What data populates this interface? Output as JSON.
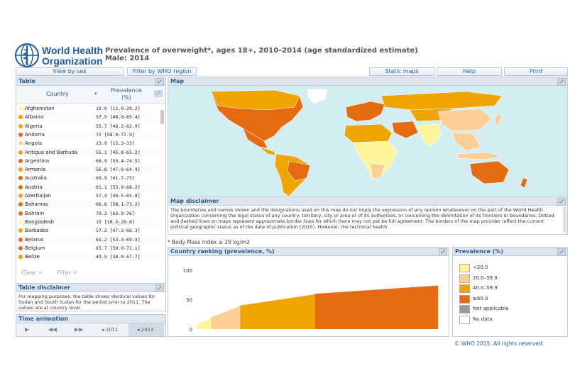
{
  "header": {
    "logo_line1": "World Health",
    "logo_line2": "Organization",
    "title_line1": "Prevalence of overweight*, ages 18+, 2010–2014 (age standardized estimate)",
    "title_line2": "Male: 2014"
  },
  "toolbar": {
    "view_by_sex": "View by sex",
    "filter_by_region": "Filter by WHO region",
    "static_maps": "Static maps",
    "help": "Help",
    "print": "Print"
  },
  "table": {
    "heading": "Table",
    "col_country": "Country",
    "col_prevalence": "Prevalence (%)",
    "rows": [
      {
        "country": "Afghanistan",
        "value": "19.9 [13.0-29.2]",
        "color": "#fff59a"
      },
      {
        "country": "Albania",
        "value": "57.5 [48.0-65.4]",
        "color": "#f0a400"
      },
      {
        "country": "Algeria",
        "value": "55.7 [48.2-62.9]",
        "color": "#f0a400"
      },
      {
        "country": "Andorra",
        "value": "72 [58.0-77.9]",
        "color": "#e66a10"
      },
      {
        "country": "Angola",
        "value": "23.9 [15.3-33]",
        "color": "#fbcf96"
      },
      {
        "country": "Antigua and Barbuda",
        "value": "55.1 [45.8-65.2]",
        "color": "#f0a400"
      },
      {
        "country": "Argentina",
        "value": "68.9 [59.4-74.5]",
        "color": "#e66a10"
      },
      {
        "country": "Armenia",
        "value": "56.8 [47.9-64.4]",
        "color": "#f0a400"
      },
      {
        "country": "Australia",
        "value": "69.9 [61.7-75]",
        "color": "#e66a10"
      },
      {
        "country": "Austria",
        "value": "61.1 [53.9-68.2]",
        "color": "#e66a10"
      },
      {
        "country": "Azerbaijan",
        "value": "57.4 [48.5-65.8]",
        "color": "#f0a400"
      },
      {
        "country": "Bahamas",
        "value": "66.8 [58.1-73.2]",
        "color": "#e66a10"
      },
      {
        "country": "Bahrain",
        "value": "70.2 [63.9-76]",
        "color": "#e66a10"
      },
      {
        "country": "Bangladesh",
        "value": "15 [10.3-20.6]",
        "color": "#fff59a"
      },
      {
        "country": "Barbados",
        "value": "57.2 [47.2-66.3]",
        "color": "#f0a400"
      },
      {
        "country": "Belarus",
        "value": "61.2 [53.3-69.3]",
        "color": "#e66a10"
      },
      {
        "country": "Belgium",
        "value": "65.7 [59.0-72.1]",
        "color": "#e66a10"
      },
      {
        "country": "Belize",
        "value": "49.5 [38.0-57.7]",
        "color": "#f0a400"
      }
    ]
  },
  "filters": {
    "clear": "Clear",
    "filter": "Filter"
  },
  "table_disclaimer": {
    "heading": "Table disclaimer",
    "text": "For mapping purposes, the table shows identical values for Sudan and South Sudan for the period prior to 2011. The values are at country level."
  },
  "time_animation": {
    "heading": "Time animation",
    "year_start": "2011",
    "year_end": "2014"
  },
  "map": {
    "heading": "Map"
  },
  "map_disclaimer": {
    "heading": "Map disclaimer",
    "text": "The boundaries and names shown and the designations used on this map do not imply the expression of any opinion whatsoever on the part of the World Health Organization concerning the legal status of any country, territory, city or area or of its authorities, or concerning the delimitation of its frontiers or boundaries. Dotted and dashed lines on maps represent approximate border lines for which there may not yet be full agreement. The borders of the map provider reflect the current political geographic status as of the date of publication (2015). However, the technical health"
  },
  "footnote": "* Body Mass Index ≥ 25 kg/m2",
  "ranking": {
    "heading": "Country ranking (prevalence, %)",
    "ticks": [
      "100",
      "50",
      "0"
    ]
  },
  "chart_data": {
    "type": "area",
    "title": "Country ranking (prevalence, %)",
    "ylim": [
      0,
      100
    ],
    "yticks": [
      0,
      50,
      100
    ],
    "segments": [
      {
        "band": "<20.0",
        "from": 8,
        "to": 19,
        "share": 0.06
      },
      {
        "band": "20.0-39.9",
        "from": 20,
        "to": 39,
        "share": 0.12
      },
      {
        "band": "40.0-59.9",
        "from": 40,
        "to": 59,
        "share": 0.31
      },
      {
        "band": "≥60.0",
        "from": 60,
        "to": 74,
        "share": 0.51
      }
    ]
  },
  "legend": {
    "heading": "Prevalence (%)",
    "items": [
      {
        "label": "<20.0",
        "color": "#fff59a"
      },
      {
        "label": "20.0–39.9",
        "color": "#fbcf96"
      },
      {
        "label": "40.0–59.9",
        "color": "#f0a400"
      },
      {
        "label": "≥60.0",
        "color": "#e66a10"
      },
      {
        "label": "Not applicable",
        "color": "#9a9a9a"
      },
      {
        "label": "No data",
        "color": "#ffffff"
      }
    ]
  },
  "copyright": "© WHO 2015. All rights reserved.",
  "colors": {
    "brand_blue": "#1d5aa6",
    "panel_header": "#dde6ef",
    "ocean": "#d3eef2"
  }
}
